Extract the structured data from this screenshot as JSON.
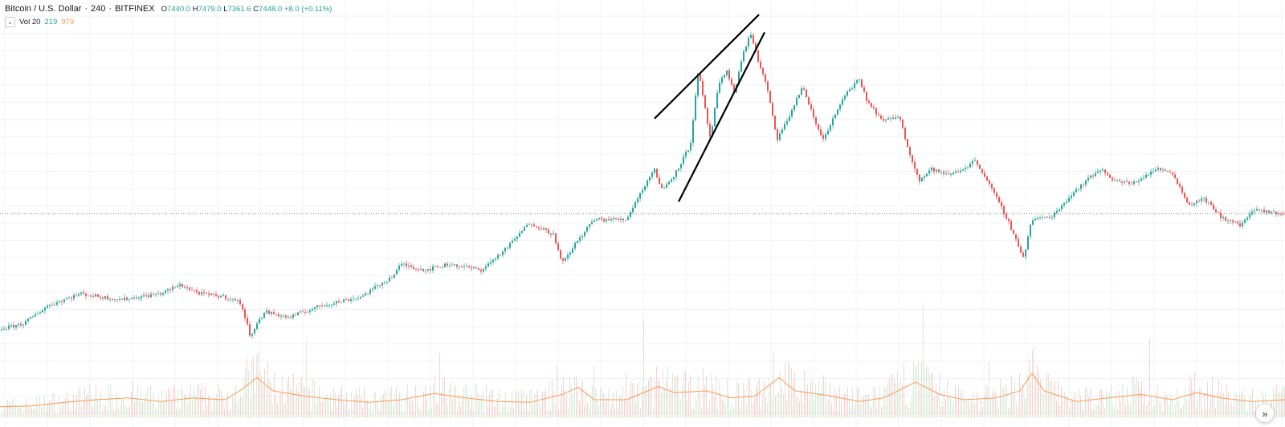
{
  "header": {
    "title": "Bitcoin / U.S. Dollar",
    "interval": "240",
    "exchange": "BITFINEX",
    "open_label": "O",
    "open": "7440.0",
    "high_label": "H",
    "high": "7479.0",
    "low_label": "L",
    "low": "7361.6",
    "close_label": "C",
    "close": "7448.0",
    "change": "+8.0 (+0.11%)"
  },
  "volume_legend": {
    "label": "Vol 20",
    "value1": "219",
    "value2": "979"
  },
  "colors": {
    "up": "#26a69a",
    "down": "#ef5350",
    "volume_ma": "#ff9850",
    "grid": "#f0f3fa"
  },
  "icons": {
    "collapse": "chevron-down-icon",
    "scroll": "double-chevron-right-icon"
  },
  "chart_data": {
    "type": "candlestick",
    "title": "Bitcoin / U.S. Dollar",
    "xlabel": "",
    "ylabel": "",
    "grid": true,
    "price_path": [
      [
        0,
        0.08
      ],
      [
        30,
        0.1
      ],
      [
        60,
        0.16
      ],
      [
        100,
        0.2
      ],
      [
        150,
        0.18
      ],
      [
        200,
        0.2
      ],
      [
        225,
        0.23
      ],
      [
        250,
        0.2
      ],
      [
        280,
        0.19
      ],
      [
        300,
        0.17
      ],
      [
        312,
        0.06
      ],
      [
        330,
        0.14
      ],
      [
        360,
        0.12
      ],
      [
        400,
        0.16
      ],
      [
        450,
        0.19
      ],
      [
        490,
        0.26
      ],
      [
        500,
        0.3
      ],
      [
        530,
        0.28
      ],
      [
        560,
        0.3
      ],
      [
        600,
        0.28
      ],
      [
        630,
        0.35
      ],
      [
        660,
        0.44
      ],
      [
        690,
        0.4
      ],
      [
        700,
        0.3
      ],
      [
        720,
        0.38
      ],
      [
        740,
        0.45
      ],
      [
        780,
        0.45
      ],
      [
        800,
        0.55
      ],
      [
        815,
        0.62
      ],
      [
        825,
        0.55
      ],
      [
        840,
        0.6
      ],
      [
        860,
        0.7
      ],
      [
        870,
        0.95
      ],
      [
        885,
        0.72
      ],
      [
        895,
        0.9
      ],
      [
        905,
        0.95
      ],
      [
        915,
        0.88
      ],
      [
        925,
        1.0
      ],
      [
        935,
        1.08
      ],
      [
        945,
        0.98
      ],
      [
        955,
        0.9
      ],
      [
        968,
        0.72
      ],
      [
        980,
        0.78
      ],
      [
        1000,
        0.9
      ],
      [
        1015,
        0.78
      ],
      [
        1025,
        0.72
      ],
      [
        1040,
        0.8
      ],
      [
        1055,
        0.88
      ],
      [
        1070,
        0.92
      ],
      [
        1080,
        0.85
      ],
      [
        1100,
        0.78
      ],
      [
        1120,
        0.8
      ],
      [
        1130,
        0.7
      ],
      [
        1145,
        0.58
      ],
      [
        1160,
        0.62
      ],
      [
        1180,
        0.6
      ],
      [
        1200,
        0.62
      ],
      [
        1215,
        0.65
      ],
      [
        1230,
        0.58
      ],
      [
        1255,
        0.45
      ],
      [
        1275,
        0.32
      ],
      [
        1285,
        0.45
      ],
      [
        1310,
        0.46
      ],
      [
        1340,
        0.55
      ],
      [
        1370,
        0.62
      ],
      [
        1390,
        0.58
      ],
      [
        1410,
        0.57
      ],
      [
        1440,
        0.62
      ],
      [
        1460,
        0.61
      ],
      [
        1480,
        0.5
      ],
      [
        1500,
        0.52
      ],
      [
        1520,
        0.46
      ],
      [
        1545,
        0.43
      ],
      [
        1560,
        0.48
      ],
      [
        1600,
        0.47
      ]
    ],
    "volume_ma_path": [
      [
        0,
        0.012
      ],
      [
        40,
        0.013
      ],
      [
        80,
        0.017
      ],
      [
        120,
        0.02
      ],
      [
        160,
        0.022
      ],
      [
        200,
        0.018
      ],
      [
        240,
        0.022
      ],
      [
        280,
        0.02
      ],
      [
        300,
        0.031
      ],
      [
        320,
        0.045
      ],
      [
        340,
        0.03
      ],
      [
        380,
        0.024
      ],
      [
        420,
        0.02
      ],
      [
        460,
        0.017
      ],
      [
        500,
        0.02
      ],
      [
        540,
        0.027
      ],
      [
        580,
        0.022
      ],
      [
        620,
        0.018
      ],
      [
        660,
        0.017
      ],
      [
        700,
        0.026
      ],
      [
        720,
        0.034
      ],
      [
        740,
        0.02
      ],
      [
        780,
        0.02
      ],
      [
        820,
        0.035
      ],
      [
        840,
        0.028
      ],
      [
        880,
        0.03
      ],
      [
        910,
        0.022
      ],
      [
        940,
        0.024
      ],
      [
        970,
        0.045
      ],
      [
        990,
        0.03
      ],
      [
        1030,
        0.025
      ],
      [
        1070,
        0.018
      ],
      [
        1100,
        0.022
      ],
      [
        1140,
        0.04
      ],
      [
        1170,
        0.026
      ],
      [
        1200,
        0.02
      ],
      [
        1240,
        0.022
      ],
      [
        1270,
        0.03
      ],
      [
        1285,
        0.05
      ],
      [
        1300,
        0.03
      ],
      [
        1340,
        0.018
      ],
      [
        1380,
        0.022
      ],
      [
        1420,
        0.026
      ],
      [
        1460,
        0.02
      ],
      [
        1490,
        0.028
      ],
      [
        1520,
        0.022
      ],
      [
        1560,
        0.018
      ],
      [
        1600,
        0.02
      ]
    ],
    "trendlines": [
      {
        "name": "upper",
        "from": [
          815,
          0.79
        ],
        "to": [
          945,
          1.14
        ]
      },
      {
        "name": "lower",
        "from": [
          845,
          0.51
        ],
        "to": [
          952,
          1.08
        ]
      }
    ],
    "last_price_line": 0.47
  },
  "scroll_label": "»"
}
